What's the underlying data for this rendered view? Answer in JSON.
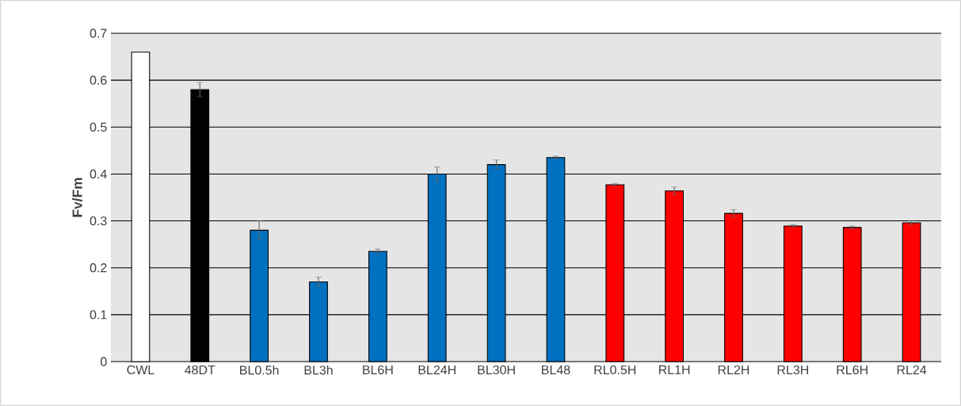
{
  "chart_data": {
    "type": "bar",
    "ylabel": "Fv/Fm",
    "categories": [
      "CWL",
      "48DT",
      "BL0.5h",
      "BL3h",
      "BL6H",
      "BL24H",
      "BL30H",
      "BL48",
      "RL0.5H",
      "RL1H",
      "RL2H",
      "RL3H",
      "RL6H",
      "RL24"
    ],
    "values": [
      0.66,
      0.58,
      0.28,
      0.17,
      0.235,
      0.4,
      0.42,
      0.435,
      0.377,
      0.364,
      0.316,
      0.289,
      0.286,
      0.296
    ],
    "errors": [
      null,
      0.015,
      0.02,
      0.01,
      0.005,
      0.015,
      0.01,
      0.003,
      0.003,
      0.008,
      0.008,
      0.003,
      0.003,
      0.004
    ],
    "colors": [
      "#ffffff",
      "#000000",
      "#0070c0",
      "#0070c0",
      "#0070c0",
      "#0070c0",
      "#0070c0",
      "#0070c0",
      "#ff0000",
      "#ff0000",
      "#ff0000",
      "#ff0000",
      "#ff0000",
      "#ff0000"
    ],
    "ylim": [
      0,
      0.7
    ],
    "yticks": [
      0,
      0.1,
      0.2,
      0.3,
      0.4,
      0.5,
      0.6,
      0.7
    ],
    "grid": "y"
  }
}
